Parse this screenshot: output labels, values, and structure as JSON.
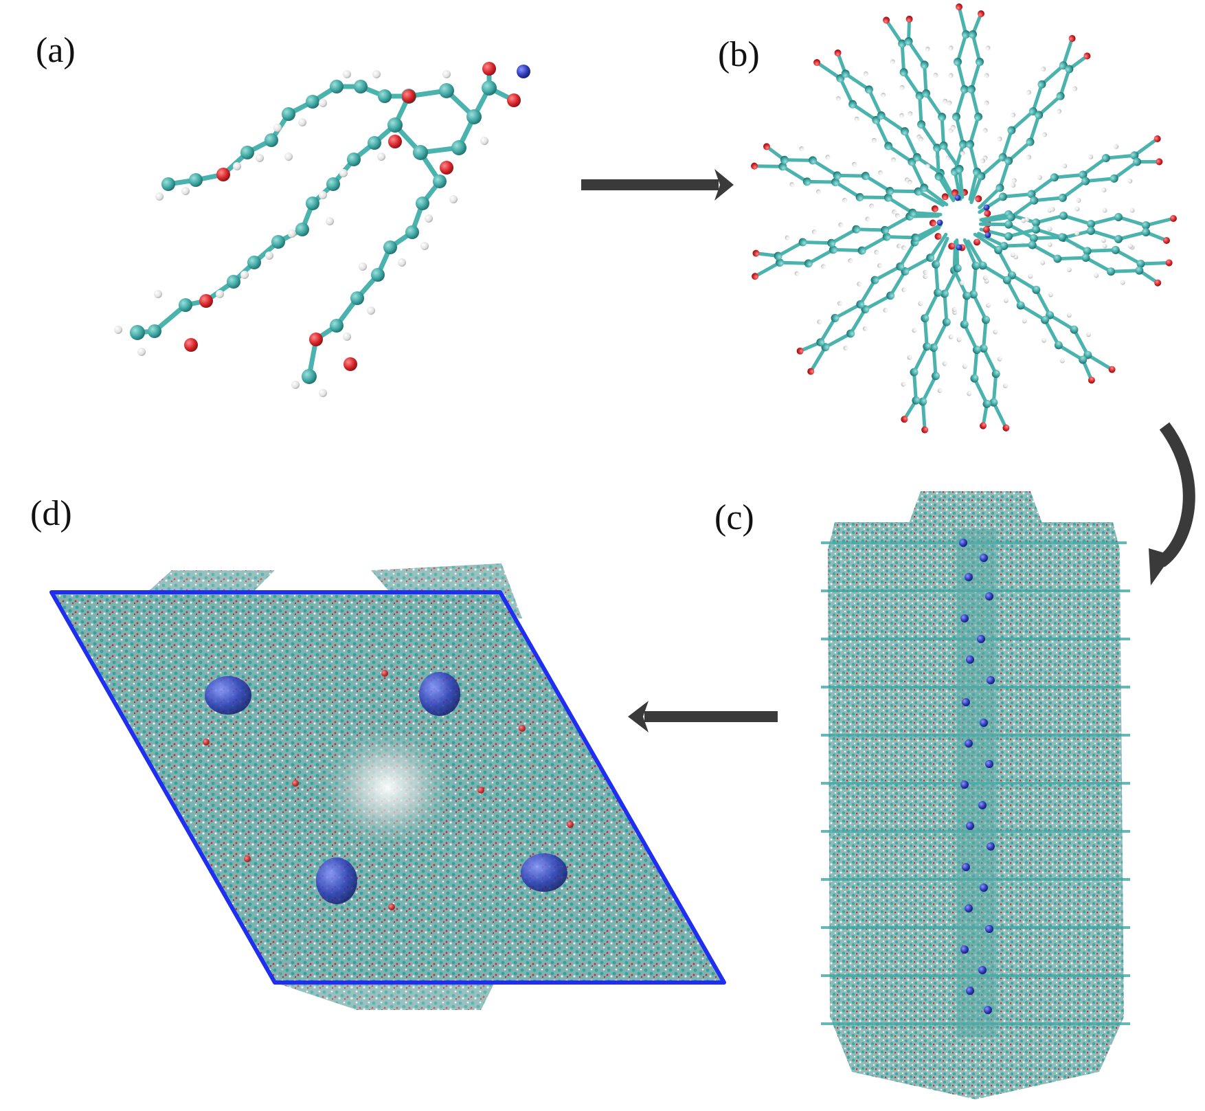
{
  "figure": {
    "panels": [
      {
        "id": "a",
        "label": "(a)"
      },
      {
        "id": "b",
        "label": "(b)"
      },
      {
        "id": "c",
        "label": "(c)"
      },
      {
        "id": "d",
        "label": "(d)"
      }
    ],
    "colors": {
      "carbon": "#3fa7a3",
      "oxygen": "#d7262b",
      "hydrogen": "#e6e6e6",
      "ion": "#2f3db8",
      "bond": "#4bb3ae",
      "arrow": "#3a3a3a",
      "cell": "#1f2ef0"
    }
  }
}
